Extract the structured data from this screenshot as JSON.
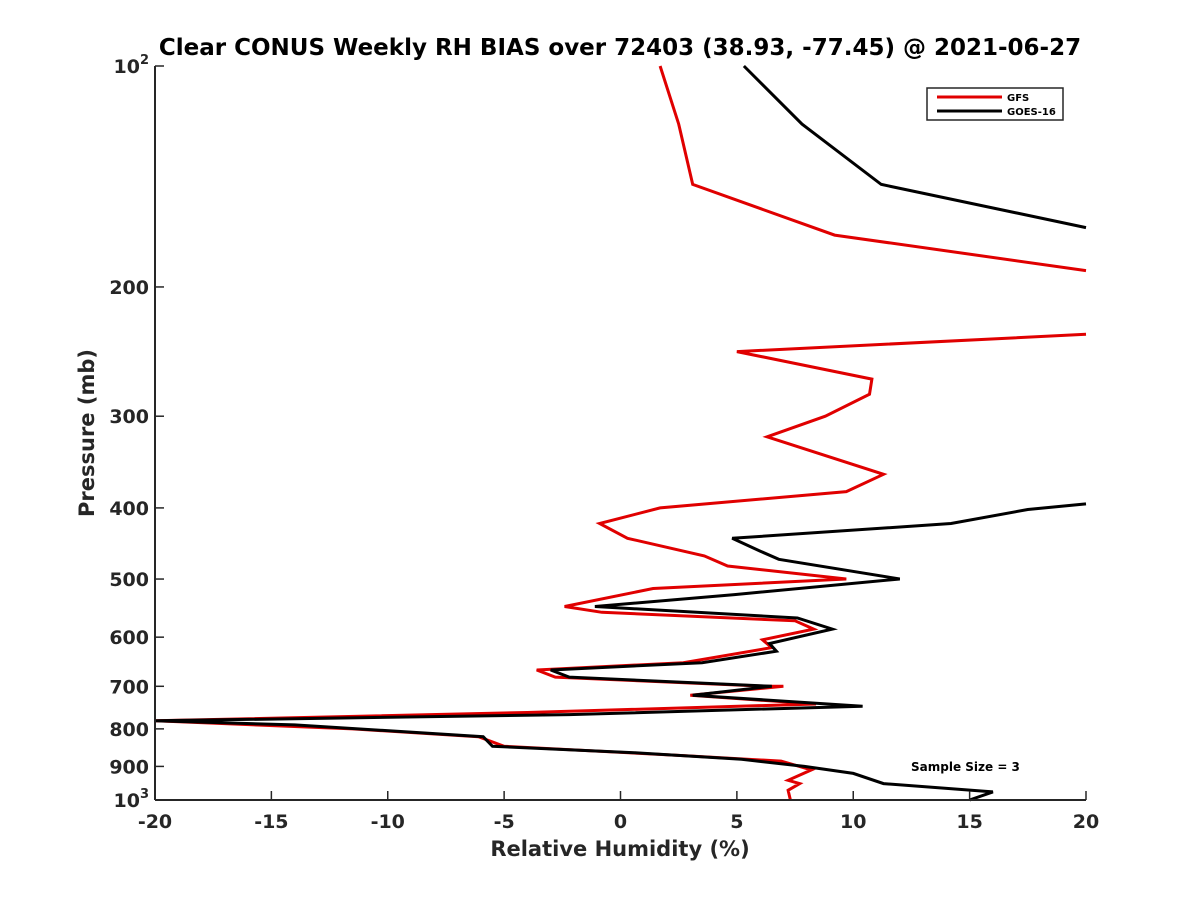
{
  "chart_data": {
    "type": "line",
    "title": "Clear CONUS Weekly RH BIAS over 72403 (38.93, -77.45) @ 2021-06-27",
    "xlabel": "Relative Humidity (%)",
    "ylabel": "Pressure (mb)",
    "xlim": [
      -20,
      20
    ],
    "ylim": [
      100,
      1000
    ],
    "y_scale": "log",
    "y_reversed": true,
    "grid": false,
    "legend_position": "top-right",
    "x_ticks": [
      -20,
      -15,
      -10,
      -5,
      0,
      5,
      10,
      15,
      20
    ],
    "x_tick_labels": [
      "-20",
      "-15",
      "-10",
      "-5",
      "0",
      "5",
      "10",
      "15",
      "20"
    ],
    "y_ticks": [
      {
        "value": 100,
        "base": "10",
        "exp": "2"
      },
      {
        "value": 200,
        "base": "200",
        "exp": ""
      },
      {
        "value": 300,
        "base": "300",
        "exp": ""
      },
      {
        "value": 400,
        "base": "400",
        "exp": ""
      },
      {
        "value": 500,
        "base": "500",
        "exp": ""
      },
      {
        "value": 600,
        "base": "600",
        "exp": ""
      },
      {
        "value": 700,
        "base": "700",
        "exp": ""
      },
      {
        "value": 800,
        "base": "800",
        "exp": ""
      },
      {
        "value": 900,
        "base": "900",
        "exp": ""
      },
      {
        "value": 1000,
        "base": "10",
        "exp": "3"
      }
    ],
    "annotation": "Sample Size = 3",
    "series": [
      {
        "name": "GFS",
        "color": "#e00000",
        "points": [
          [
            1.7,
            100
          ],
          [
            2.5,
            120
          ],
          [
            3.1,
            145
          ],
          [
            9.2,
            170
          ],
          [
            20,
            190
          ],
          [
            null,
            null
          ],
          [
            20,
            232
          ],
          [
            5.0,
            245
          ],
          [
            10.8,
            267
          ],
          [
            10.7,
            280
          ],
          [
            8.8,
            300
          ],
          [
            6.3,
            320
          ],
          [
            11.3,
            360
          ],
          [
            9.7,
            380
          ],
          [
            1.7,
            400
          ],
          [
            -0.9,
            420
          ],
          [
            0.3,
            440
          ],
          [
            3.6,
            465
          ],
          [
            4.6,
            480
          ],
          [
            9.7,
            500
          ],
          [
            1.4,
            515
          ],
          [
            -2.4,
            545
          ],
          [
            -0.8,
            555
          ],
          [
            7.5,
            570
          ],
          [
            8.3,
            585
          ],
          [
            6.1,
            605
          ],
          [
            6.5,
            620
          ],
          [
            2.7,
            650
          ],
          [
            -3.6,
            665
          ],
          [
            -2.8,
            680
          ],
          [
            6.3,
            700
          ],
          [
            7.0,
            700
          ],
          [
            3.0,
            720
          ],
          [
            8.4,
            740
          ],
          [
            -4.0,
            760
          ],
          [
            -20,
            780
          ],
          [
            -11.5,
            800
          ],
          [
            -6.1,
            820
          ],
          [
            -5.0,
            845
          ],
          [
            2.7,
            870
          ],
          [
            6.9,
            885
          ],
          [
            8.2,
            910
          ],
          [
            7.2,
            940
          ],
          [
            7.7,
            950
          ],
          [
            7.2,
            970
          ],
          [
            7.3,
            1000
          ]
        ]
      },
      {
        "name": "GOES-16",
        "color": "#000000",
        "points": [
          [
            5.3,
            100
          ],
          [
            7.8,
            120
          ],
          [
            11.2,
            145
          ],
          [
            20,
            166
          ],
          [
            null,
            null
          ],
          [
            20,
            395
          ],
          [
            17.5,
            402
          ],
          [
            14.2,
            420
          ],
          [
            4.8,
            440
          ],
          [
            6.0,
            458
          ],
          [
            6.8,
            470
          ],
          [
            12.0,
            500
          ],
          [
            4.9,
            525
          ],
          [
            -1.1,
            545
          ],
          [
            7.6,
            565
          ],
          [
            9.1,
            585
          ],
          [
            6.4,
            612
          ],
          [
            6.7,
            627
          ],
          [
            3.5,
            650
          ],
          [
            -3.0,
            665
          ],
          [
            -2.2,
            680
          ],
          [
            6.5,
            700
          ],
          [
            3.1,
            720
          ],
          [
            10.4,
            745
          ],
          [
            -2.2,
            765
          ],
          [
            -20,
            780
          ],
          [
            -14.0,
            790
          ],
          [
            -5.9,
            820
          ],
          [
            -5.5,
            845
          ],
          [
            0.6,
            862
          ],
          [
            5.2,
            880
          ],
          [
            7.9,
            900
          ],
          [
            10.0,
            920
          ],
          [
            11.3,
            950
          ],
          [
            16.0,
            975
          ],
          [
            15.0,
            1000
          ]
        ]
      }
    ]
  }
}
